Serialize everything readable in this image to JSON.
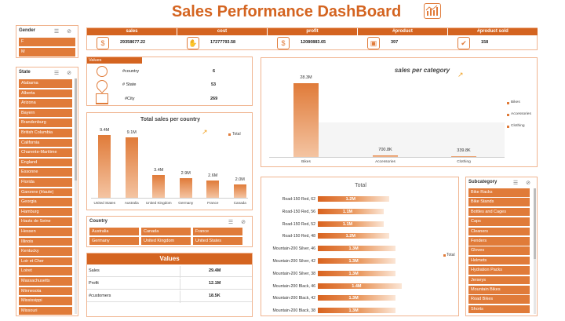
{
  "title": "Sales Performance DashBoard",
  "accent": "#e07b39",
  "kpis": [
    {
      "label": "sales",
      "value": "29358677.22",
      "icon": "money-bag-icon"
    },
    {
      "label": "cost",
      "value": "17277793.58",
      "icon": "cash-hand-icon"
    },
    {
      "label": "profit",
      "value": "12080883.65",
      "icon": "dollar-coin-icon"
    },
    {
      "label": "#product",
      "value": "397",
      "icon": "product-box-icon"
    },
    {
      "label": "#product sold",
      "value": "158",
      "icon": "product-sold-icon"
    }
  ],
  "gender": {
    "title": "Gender",
    "items": [
      "F",
      "M"
    ]
  },
  "state": {
    "title": "State",
    "items": [
      "Alabama",
      "Alberta",
      "Arizona",
      "Bayern",
      "Brandenburg",
      "British Columbia",
      "California",
      "Charente-Maritime",
      "England",
      "Essonne",
      "Florida",
      "Garonne (Haute)",
      "Georgia",
      "Hamburg",
      "Hauts de Seine",
      "Hessen",
      "Illinois",
      "Kentucky",
      "Loir et Cher",
      "Loiret",
      "Massachusetts",
      "Minnesota",
      "Mississippi",
      "Missouri"
    ]
  },
  "values_box": {
    "title": "Values",
    "rows": [
      {
        "label": "#country",
        "value": "6"
      },
      {
        "label": "# State",
        "value": "53"
      },
      {
        "label": "#City",
        "value": "269"
      }
    ]
  },
  "country_chart": {
    "chart_data": {
      "type": "bar",
      "title": "Total sales per country",
      "categories": [
        "United States",
        "Australia",
        "United Kingdom",
        "Germany",
        "France",
        "Canada"
      ],
      "values": [
        9.4,
        9.1,
        3.4,
        2.9,
        2.6,
        2.0
      ],
      "value_labels": [
        "9.4M",
        "9.1M",
        "3.4M",
        "2.9M",
        "2.6M",
        "2.0M"
      ],
      "legend": "Total",
      "legend_position": "top-right"
    }
  },
  "country_slicer": {
    "title": "Country",
    "items": [
      "Australia",
      "Canada",
      "France",
      "Germany",
      "United Kingdom",
      "United States"
    ]
  },
  "values_table": {
    "title": "Values",
    "rows": [
      {
        "label": "Sales",
        "value": "29.4M"
      },
      {
        "label": "Profit",
        "value": "12.1M"
      },
      {
        "label": "#customers",
        "value": "18.5K"
      }
    ]
  },
  "category_chart": {
    "chart_data": {
      "type": "bar",
      "title": "sales per category",
      "categories": [
        "Bikes",
        "Accessories",
        "Clothing"
      ],
      "values": [
        28.3,
        0.7008,
        0.3398
      ],
      "value_labels": [
        "28.3M",
        "700.8K",
        "339.8K"
      ],
      "legend": [
        "Bikes",
        "Accessories",
        "Clothing"
      ],
      "legend_position": "right"
    }
  },
  "product_chart": {
    "chart_data": {
      "type": "bar",
      "title": "Total",
      "categories": [
        "Road-150 Red, 62",
        "Road-150 Red, 56",
        "Road-150 Red, 52",
        "Road-150 Red, 48",
        "Mountain-200 Silver, 46",
        "Mountain-200 Silver, 42",
        "Mountain-200 Silver, 38",
        "Mountain-200 Black, 46",
        "Mountain-200 Black, 42",
        "Mountain-200 Black, 38"
      ],
      "values": [
        1.2,
        1.1,
        1.1,
        1.2,
        1.3,
        1.3,
        1.3,
        1.4,
        1.3,
        1.3
      ],
      "value_labels": [
        "1.2M",
        "1.1M",
        "1.1M",
        "1.2M",
        "1.3M",
        "1.3M",
        "1.3M",
        "1.4M",
        "1.3M",
        "1.3M"
      ],
      "legend": "Total",
      "legend_position": "right"
    }
  },
  "subcategory": {
    "title": "Subcategory",
    "items": [
      "Bike Racks",
      "Bike Stands",
      "Bottles and Cages",
      "Caps",
      "Cleaners",
      "Fenders",
      "Gloves",
      "Helmets",
      "Hydration Packs",
      "Jerseys",
      "Mountain Bikes",
      "Road Bikes",
      "Shorts"
    ]
  }
}
